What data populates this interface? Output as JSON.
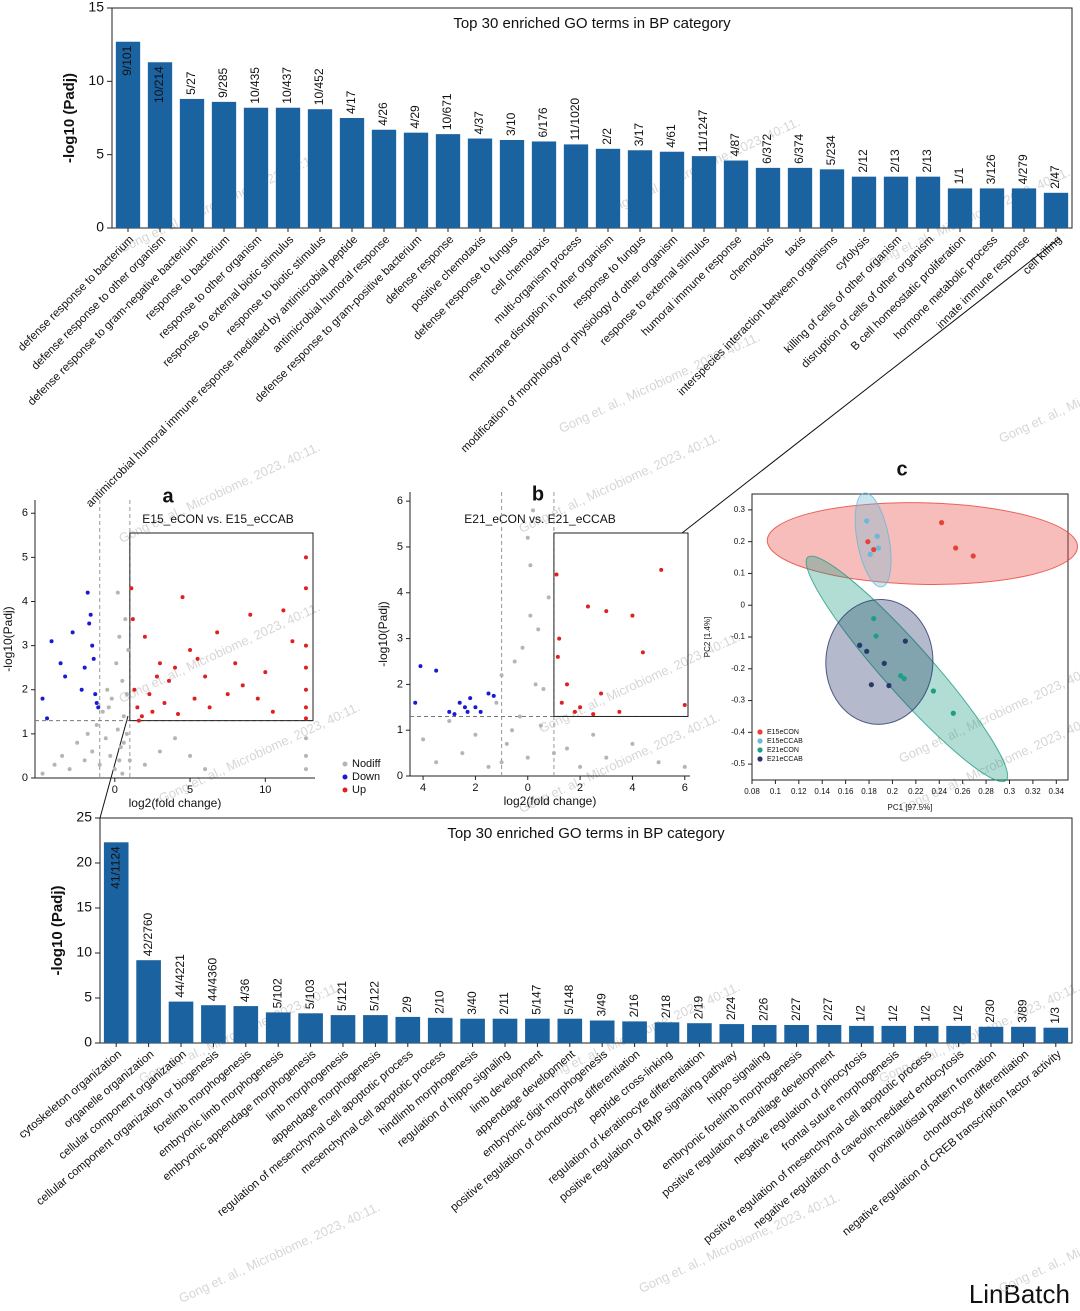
{
  "chart_data": [
    {
      "type": "bar",
      "title": "Top 30 enriched GO terms in BP category",
      "ylabel": "-log10 (Padj)",
      "categories": [
        "defense response to bacterium",
        "defense response to other organism",
        "defense response to gram-negative bacterium",
        "response to bacterium",
        "response to other organism",
        "response to external biotic stimulus",
        "response to biotic stimulus",
        "antimicrobial humoral immune response mediated by antimicrobial peptide",
        "antimicrobial humoral response",
        "defense response to gram-positive bacterium",
        "defense response",
        "positive chemotaxis",
        "defense response to fungus",
        "cell chemotaxis",
        "multi-organism process",
        "membrane disruption in other organism",
        "response to fungus",
        "modification of morphology or physiology of other organism",
        "response to external stimulus",
        "humoral immune response",
        "chemotaxis",
        "taxis",
        "interspecies interaction between organisms",
        "cytolysis",
        "killing of cells of other organism",
        "disruption of cells of other organism",
        "B cell homeostatic proliferation",
        "hormone metabolic process",
        "innate immune response",
        "cell killing"
      ],
      "values": [
        12.7,
        11.3,
        8.8,
        8.6,
        8.2,
        8.2,
        8.1,
        7.5,
        6.7,
        6.5,
        6.4,
        6.1,
        6.0,
        5.9,
        5.7,
        5.4,
        5.3,
        5.2,
        4.9,
        4.6,
        4.1,
        4.1,
        4.0,
        3.5,
        3.5,
        3.5,
        2.7,
        2.7,
        2.7,
        2.4
      ],
      "gene_ratios": [
        "9/101",
        "10/214",
        "5/27",
        "9/285",
        "10/435",
        "10/437",
        "10/452",
        "4/17",
        "4/26",
        "4/29",
        "10/671",
        "4/37",
        "3/10",
        "6/176",
        "11/1020",
        "2/2",
        "3/17",
        "4/61",
        "11/1247",
        "4/87",
        "6/372",
        "6/374",
        "5/234",
        "2/12",
        "2/13",
        "2/13",
        "1/1",
        "3/126",
        "4/279",
        "2/47"
      ],
      "color": "#1b62a0",
      "ylim": [
        0,
        15
      ],
      "yticks": [
        0,
        5,
        10,
        15
      ]
    },
    {
      "type": "scatter",
      "panel": "a",
      "title": "E15_eCON vs. E15_eCCAB",
      "xlabel": "log2(fold change)",
      "ylabel": "-log10(Padj)",
      "xlim": [
        -5.3,
        13.3
      ],
      "xticks": [
        0,
        5,
        10
      ],
      "ylim": [
        0,
        6.3
      ],
      "yticks": [
        0,
        1,
        2,
        3,
        4,
        5,
        6
      ],
      "xlines": [
        -1,
        1
      ],
      "ylines": [
        1.3
      ],
      "legend": "outside lower right",
      "series": [
        {
          "name": "Nodiff",
          "color": "#b5b5b5",
          "x": [
            -4.8,
            -4,
            -3.5,
            -3,
            -2.5,
            -2,
            -1.8,
            -1.5,
            -1.2,
            -1,
            -0.8,
            -0.6,
            -0.5,
            -0.3,
            -0.2,
            0,
            0.1,
            0.2,
            0.3,
            0.4,
            0.5,
            0.6,
            0.7,
            0.8,
            0.9,
            1,
            0.2,
            -0.4,
            0.6,
            0.8,
            2,
            3,
            4,
            5,
            6,
            12.7,
            12.7,
            12.7,
            0.5,
            0.3
          ],
          "values": [
            0.1,
            0.3,
            0.5,
            0.2,
            0.8,
            0.4,
            1.0,
            0.6,
            1.2,
            0.3,
            1.5,
            0.9,
            2.0,
            0.5,
            1.8,
            0.2,
            2.6,
            1.1,
            3.2,
            0.7,
            2.2,
            1.4,
            3.6,
            1.0,
            2.9,
            0.4,
            4.2,
            1.6,
            0.8,
            1.9,
            0.3,
            0.6,
            0.9,
            0.5,
            0.2,
            0.2,
            0.5,
            0.9,
            0.1,
            0.4
          ]
        },
        {
          "name": "Down",
          "color": "#1a1ad0",
          "x": [
            -4.8,
            -4.5,
            -4.2,
            -3.6,
            -3.3,
            -2.8,
            -2.2,
            -1.8,
            -1.7,
            -1.4,
            -1.3,
            -1.2,
            -1.5,
            -1.1,
            -2.0,
            -1.6
          ],
          "values": [
            1.8,
            1.35,
            3.1,
            2.6,
            2.3,
            3.3,
            2.0,
            4.2,
            3.5,
            2.7,
            1.9,
            1.7,
            3.0,
            1.6,
            2.5,
            3.7
          ]
        },
        {
          "name": "Up",
          "color": "#e02020",
          "x": [
            1.1,
            1.3,
            1.5,
            1.8,
            2,
            2.3,
            2.5,
            3,
            3.3,
            3.6,
            4,
            4.2,
            4.5,
            5,
            5.3,
            5.5,
            6,
            6.3,
            6.8,
            7.5,
            8,
            8.5,
            9,
            9.5,
            10,
            10.5,
            11.2,
            11.8,
            12.7,
            12.7,
            12.7,
            12.7,
            12.7,
            12.7,
            12.7,
            1.2,
            1.6,
            2.8
          ],
          "values": [
            4.3,
            2.0,
            1.6,
            1.4,
            3.2,
            1.9,
            1.5,
            2.6,
            1.7,
            2.2,
            2.5,
            1.45,
            4.1,
            2.9,
            1.8,
            2.7,
            2.3,
            1.6,
            3.3,
            1.9,
            2.6,
            2.1,
            3.7,
            1.8,
            2.4,
            1.5,
            3.8,
            3.1,
            5.0,
            4.3,
            3.0,
            2.5,
            2.0,
            1.6,
            1.35,
            3.6,
            1.3,
            2.3
          ]
        }
      ]
    },
    {
      "type": "scatter",
      "panel": "b",
      "title": "E21_eCON vs. E21_eCCAB",
      "xlabel": "log2(fold change)",
      "ylabel": "-log10(Padj)",
      "xlim": [
        -4.5,
        6.2
      ],
      "xticks": [
        {
          "value": -4,
          "label": "4"
        },
        {
          "value": -2,
          "label": "2"
        },
        0,
        2,
        4,
        6
      ],
      "ylim": [
        0,
        6.2
      ],
      "yticks": [
        0,
        1,
        2,
        3,
        4,
        5,
        6
      ],
      "xlines": [
        -1,
        1
      ],
      "ylines": [
        1.3
      ],
      "series": [
        {
          "name": "Nodiff",
          "color": "#b5b5b5",
          "x": [
            -4,
            -3.5,
            -3,
            -2.5,
            -2,
            -1.5,
            -1.2,
            -1,
            -0.8,
            -0.5,
            -0.3,
            0,
            0.2,
            0.4,
            0.6,
            0.8,
            1,
            -0.2,
            0.1,
            0.5,
            -1,
            -0.6,
            0.3,
            1.5,
            2,
            2.5,
            3,
            4,
            5,
            6,
            0,
            0.1
          ],
          "values": [
            0.8,
            0.3,
            1.2,
            0.5,
            0.9,
            0.2,
            1.6,
            2.2,
            0.7,
            2.5,
            1.3,
            0.4,
            5.8,
            3.2,
            1.9,
            3.9,
            0.5,
            2.8,
            4.6,
            1.1,
            0.3,
            1.0,
            2.0,
            0.6,
            0.2,
            0.9,
            0.4,
            0.7,
            0.3,
            0.2,
            5.2,
            3.5
          ]
        },
        {
          "name": "Down",
          "color": "#1a1ad0",
          "x": [
            -4.3,
            -4.1,
            -3.5,
            -3.0,
            -2.8,
            -2.6,
            -2.4,
            -2.3,
            -2.2,
            -2.0,
            -1.8,
            -1.5,
            -1.3
          ],
          "values": [
            1.6,
            2.4,
            2.3,
            1.4,
            1.35,
            1.6,
            1.5,
            1.4,
            1.7,
            1.5,
            1.4,
            1.8,
            1.75
          ]
        },
        {
          "name": "Up",
          "color": "#e02020",
          "x": [
            1.1,
            1.2,
            1.3,
            1.5,
            1.8,
            2.0,
            2.3,
            2.8,
            3.0,
            3.5,
            4.0,
            4.4,
            5.1,
            6.0,
            1.15,
            2.5
          ],
          "values": [
            4.4,
            3.0,
            1.6,
            2.0,
            1.4,
            1.5,
            3.7,
            1.8,
            3.6,
            1.4,
            3.5,
            2.7,
            4.5,
            1.55,
            2.6,
            1.35
          ]
        }
      ]
    },
    {
      "type": "scatter",
      "panel": "c",
      "xlabel": "PC1 [97.5%]",
      "ylabel": "PC2 [1.4%]",
      "xlim": [
        0.08,
        0.35
      ],
      "xticks": [
        0.08,
        0.1,
        0.12,
        0.14,
        0.16,
        0.18,
        0.2,
        0.22,
        0.24,
        0.26,
        0.28,
        0.3,
        0.32,
        0.34
      ],
      "ylim": [
        -0.55,
        0.35
      ],
      "yticks": [
        -0.5,
        -0.4,
        -0.3,
        -0.2,
        -0.1,
        0,
        0.1,
        0.2,
        0.3
      ],
      "legend": "lower left",
      "ellipses": true,
      "series": [
        {
          "name": "E15eCON",
          "color": "#e8413a",
          "x": [
            0.242,
            0.254,
            0.269,
            0.179,
            0.184
          ],
          "values": [
            0.26,
            0.18,
            0.155,
            0.2,
            0.175
          ]
        },
        {
          "name": "E15eCCAB",
          "color": "#6cb8d8",
          "x": [
            0.178,
            0.187,
            0.188,
            0.181
          ],
          "values": [
            0.265,
            0.217,
            0.18,
            0.16
          ]
        },
        {
          "name": "E21eCON",
          "color": "#1f9e84",
          "x": [
            0.184,
            0.186,
            0.21,
            0.207,
            0.235,
            0.252
          ],
          "values": [
            -0.042,
            -0.097,
            -0.231,
            -0.222,
            -0.27,
            -0.34
          ]
        },
        {
          "name": "E21eCCAB",
          "color": "#28386b",
          "x": [
            0.172,
            0.178,
            0.193,
            0.182,
            0.197,
            0.211
          ],
          "values": [
            -0.126,
            -0.145,
            -0.183,
            -0.25,
            -0.253,
            -0.113
          ]
        }
      ]
    },
    {
      "type": "bar",
      "title": "Top 30 enriched GO terms in BP category",
      "ylabel": "-log10 (Padj)",
      "categories": [
        "cytoskeleton organization",
        "organelle organization",
        "cellular component organization",
        "cellular component organization or biogenesis",
        "forelimb morphogenesis",
        "embryonic limb morphogenesis",
        "embryonic appendage morphogenesis",
        "limb morphogenesis",
        "appendage morphogenesis",
        "regulation of mesenchymal cell apoptotic process",
        "mesenchymal cell apoptotic process",
        "hindlimb morphogenesis",
        "regulation of hippo signaling",
        "limb development",
        "appendage development",
        "embryonic digit morphogenesis",
        "positive regulation of chondrocyte differentiation",
        "peptide cross-linking",
        "regulation of keratinocyte differentiation",
        "positive regulation of BMP signaling pathway",
        "hippo signaling",
        "embryonic forelimb morphogenesis",
        "positive regulation of cartilage development",
        "negative regulation of pinocytosis",
        "frontal suture morphogenesis",
        "positive regulation of mesenchymal cell apoptotic process",
        "negative regulation of caveolin-mediated endocytosis",
        "proximal/distal pattern formation",
        "chondrocyte differentiation",
        "negative regulation of CREB transcription factor activity"
      ],
      "values": [
        22.3,
        9.2,
        4.6,
        4.2,
        4.1,
        3.4,
        3.3,
        3.1,
        3.1,
        2.9,
        2.8,
        2.7,
        2.7,
        2.7,
        2.7,
        2.5,
        2.4,
        2.3,
        2.2,
        2.1,
        2.0,
        2.0,
        2.0,
        1.9,
        1.9,
        1.9,
        1.9,
        1.8,
        1.8,
        1.7
      ],
      "gene_ratios": [
        "41/1124",
        "42/2760",
        "44/4221",
        "44/4360",
        "4/36",
        "5/102",
        "5/103",
        "5/121",
        "5/122",
        "2/9",
        "2/10",
        "3/40",
        "2/11",
        "5/147",
        "5/148",
        "3/49",
        "2/16",
        "2/18",
        "2/19",
        "2/24",
        "2/26",
        "2/27",
        "2/27",
        "1/2",
        "1/2",
        "1/2",
        "1/2",
        "2/30",
        "3/89",
        "1/3"
      ],
      "color": "#1b62a0",
      "ylim": [
        0,
        25
      ],
      "yticks": [
        0,
        5,
        10,
        15,
        20,
        25
      ]
    }
  ],
  "watermark": "Gong et. al., Microbiome, 2023, 40:11.",
  "footer": "LinBatch"
}
